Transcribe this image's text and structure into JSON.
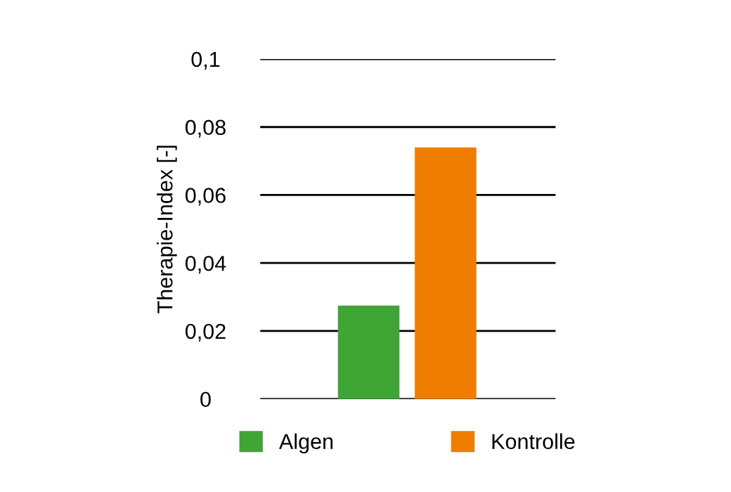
{
  "chart_data": {
    "type": "bar",
    "ylabel": "Therapie-Index [-]",
    "categories": [
      null
    ],
    "series": [
      {
        "name": "Algen",
        "color": "#3fa535",
        "values": [
          0.0275
        ]
      },
      {
        "name": "Kontrolle",
        "color": "#ef7d00",
        "values": [
          0.074
        ]
      }
    ],
    "ylim": [
      0,
      0.1
    ],
    "yticks": [
      0,
      {
        "value": 0.02,
        "label": "0,02"
      },
      {
        "value": 0.04,
        "label": "0,04"
      },
      {
        "value": 0.06,
        "label": "0,06"
      },
      {
        "value": 0.08,
        "label": "0,08"
      },
      {
        "value": 0.1,
        "label": "0,1"
      }
    ],
    "grid": "y",
    "legend": "bottom",
    "tick_labels": "y"
  }
}
